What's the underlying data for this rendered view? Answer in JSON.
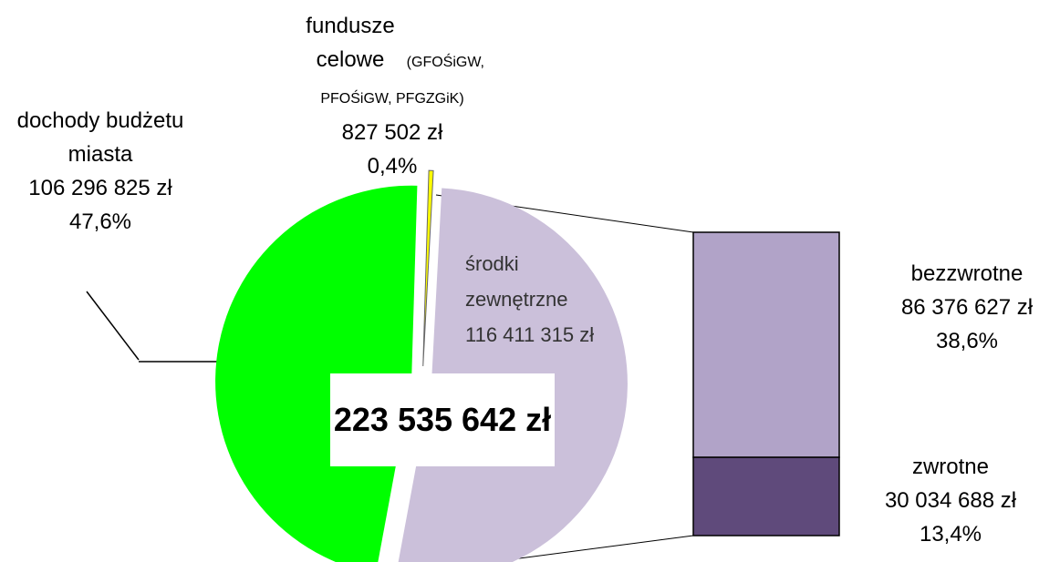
{
  "chart_data": {
    "type": "pie",
    "categories": [
      "dochody budżetu miasta",
      "fundusze celowe",
      "środki zewnętrzne"
    ],
    "category_notes": [
      null,
      "(GFOŚiGW, PFOŚiGW, PFGZGiK)",
      null
    ],
    "values": [
      106296825,
      827502,
      116411315
    ],
    "value_labels": [
      "106 296 825 zł",
      "827 502 zł",
      "116 411 315 zł"
    ],
    "percents": [
      47.6,
      0.4,
      null
    ],
    "percent_labels": [
      "47,6%",
      "0,4%",
      null
    ],
    "colors": [
      "#00ff00",
      "#ffff00",
      "#cbc0da"
    ],
    "total": {
      "value": 223535642,
      "label": "223 535 642 zł"
    },
    "breakdown": {
      "type": "bar",
      "categories": [
        "bezzwrotne",
        "zwrotne"
      ],
      "values": [
        86376627,
        30034688
      ],
      "value_labels": [
        "86 376 627 zł",
        "30 034 688 zł"
      ],
      "percents": [
        38.6,
        13.4
      ],
      "percent_labels": [
        "38,6%",
        "13,4%"
      ],
      "colors": [
        "#b1a3c8",
        "#5f4a7b"
      ]
    }
  }
}
